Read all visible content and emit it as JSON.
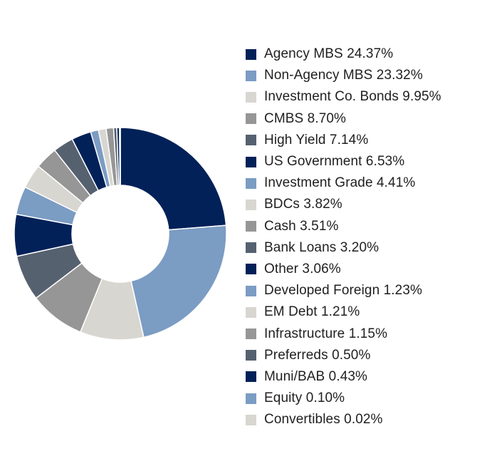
{
  "chart_data": {
    "type": "pie",
    "title": "",
    "palette": [
      "#012158",
      "#7b9cc3",
      "#d8d6d0",
      "#969696",
      "#566170"
    ],
    "slices": [
      {
        "label": "Agency MBS 24.37%",
        "value": 24.37
      },
      {
        "label": "Non-Agency MBS 23.32%",
        "value": 23.32
      },
      {
        "label": "Investment Co. Bonds 9.95%",
        "value": 9.95
      },
      {
        "label": "CMBS 8.70%",
        "value": 8.7
      },
      {
        "label": "High Yield 7.14%",
        "value": 7.14
      },
      {
        "label": "US Government 6.53%",
        "value": 6.53
      },
      {
        "label": "Investment Grade 4.41%",
        "value": 4.41
      },
      {
        "label": "BDCs 3.82%",
        "value": 3.82
      },
      {
        "label": "Cash 3.51%",
        "value": 3.51
      },
      {
        "label": "Bank Loans 3.20%",
        "value": 3.2
      },
      {
        "label": "Other 3.06%",
        "value": 3.06
      },
      {
        "label": "Developed Foreign 1.23%",
        "value": 1.23
      },
      {
        "label": "EM Debt 1.21%",
        "value": 1.21
      },
      {
        "label": "Infrastructure 1.15%",
        "value": 1.15
      },
      {
        "label": "Preferreds 0.50%",
        "value": 0.5
      },
      {
        "label": "Muni/BAB 0.43%",
        "value": 0.43
      },
      {
        "label": "Equity 0.10%",
        "value": 0.1
      },
      {
        "label": "Convertibles 0.02%",
        "value": 0.02
      }
    ],
    "legend_position": "right"
  }
}
